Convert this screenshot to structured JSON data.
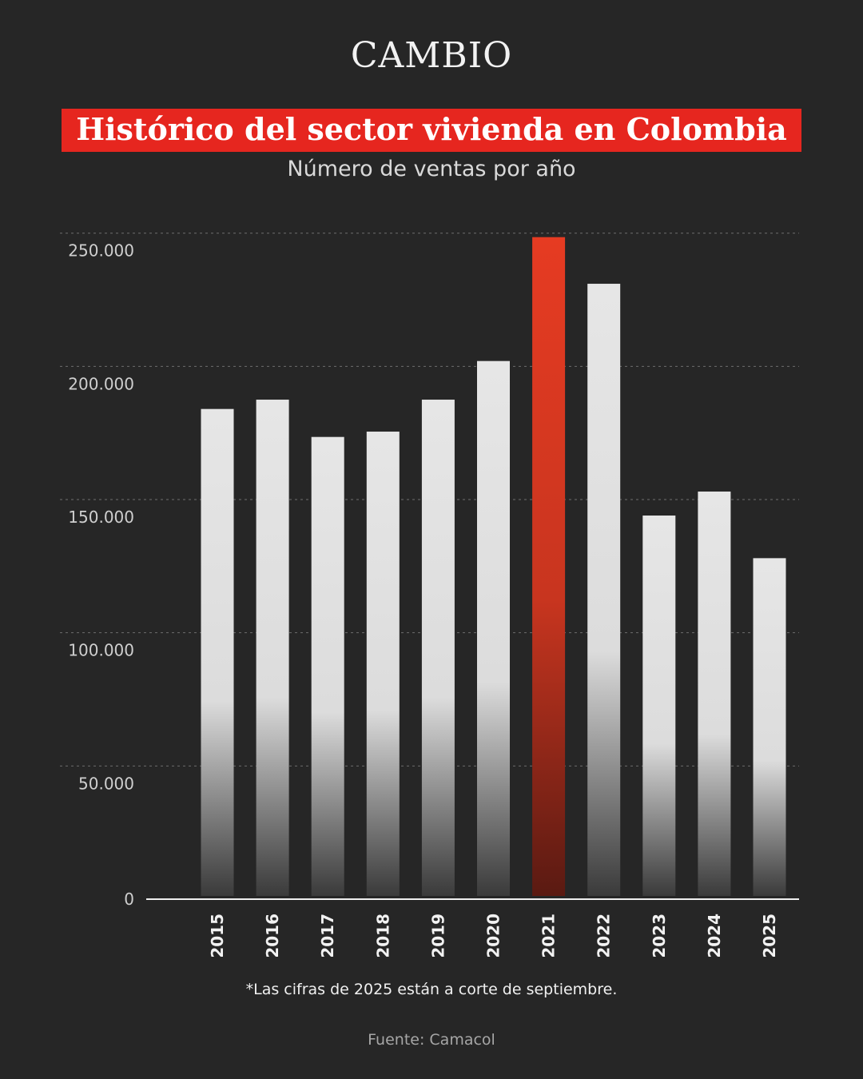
{
  "brand": "CAMBIO",
  "title": "Histórico del sector vivienda en Colombia",
  "subtitle": "Número de ventas por año",
  "note": "*Las cifras de 2025 están a corte de septiembre.",
  "source": "Fuente: Camacol",
  "colors": {
    "background": "#262626",
    "accent": "#e63b22",
    "bar": "#e6e6e6"
  },
  "chart_data": {
    "type": "bar",
    "categories": [
      "2015",
      "2016",
      "2017",
      "2018",
      "2019",
      "2020",
      "2021",
      "2022",
      "2023",
      "2024",
      "2025"
    ],
    "values": [
      184000,
      187500,
      173500,
      175500,
      187500,
      202000,
      248500,
      231000,
      144000,
      153000,
      128000
    ],
    "highlight": "2021",
    "ylim": [
      0,
      250000
    ],
    "yticks": [
      0,
      50000,
      100000,
      150000,
      200000,
      250000
    ],
    "ytick_labels": [
      "0",
      "50.000",
      "100.000",
      "150.000",
      "200.000",
      "250.000"
    ],
    "grid": true,
    "title": "",
    "xlabel": "",
    "ylabel": ""
  }
}
